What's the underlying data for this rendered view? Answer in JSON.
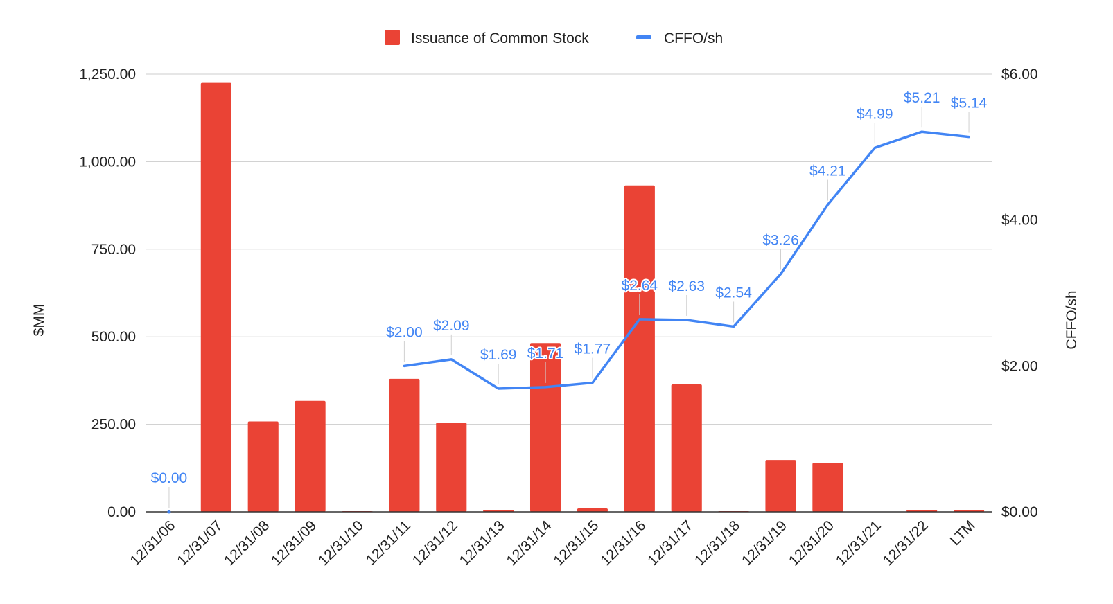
{
  "chart_data": {
    "type": "bar",
    "categories": [
      "12/31/06",
      "12/31/07",
      "12/31/08",
      "12/31/09",
      "12/31/10",
      "12/31/11",
      "12/31/12",
      "12/31/13",
      "12/31/14",
      "12/31/15",
      "12/31/16",
      "12/31/17",
      "12/31/18",
      "12/31/19",
      "12/31/20",
      "12/31/21",
      "12/31/22",
      "LTM"
    ],
    "series": [
      {
        "name": "Issuance of Common Stock",
        "type": "bar",
        "axis": "left",
        "color": "#ea4335",
        "values": [
          0,
          1225,
          258,
          317,
          2,
          380,
          255,
          6,
          482,
          10,
          932,
          364,
          2,
          148,
          140,
          0,
          6,
          6
        ]
      },
      {
        "name": "CFFO/sh",
        "type": "line",
        "axis": "right",
        "color": "#4285f4",
        "values": [
          0.0,
          null,
          null,
          null,
          null,
          2.0,
          2.09,
          1.69,
          1.71,
          1.77,
          2.64,
          2.63,
          2.54,
          3.26,
          4.21,
          4.99,
          5.21,
          5.14
        ],
        "labels": [
          "$0.00",
          null,
          null,
          null,
          null,
          "$2.00",
          "$2.09",
          "$1.69",
          "$1.71",
          "$1.77",
          "$2.64",
          "$2.63",
          "$2.54",
          "$3.26",
          "$4.21",
          "$4.99",
          "$5.21",
          "$5.14"
        ]
      }
    ],
    "left_axis": {
      "title": "$MM",
      "ylim": [
        0,
        1250
      ],
      "ticks": [
        0,
        250,
        500,
        750,
        1000,
        1250
      ],
      "tick_labels": [
        "0.00",
        "250.00",
        "500.00",
        "750.00",
        "1,000.00",
        "1,250.00"
      ]
    },
    "right_axis": {
      "title": "CFFO/sh",
      "ylim": [
        0,
        6
      ],
      "ticks": [
        0,
        2,
        4,
        6
      ],
      "tick_labels": [
        "$0.00",
        "$2.00",
        "$4.00",
        "$6.00"
      ]
    },
    "grid": true,
    "legend_position": "top-center"
  }
}
